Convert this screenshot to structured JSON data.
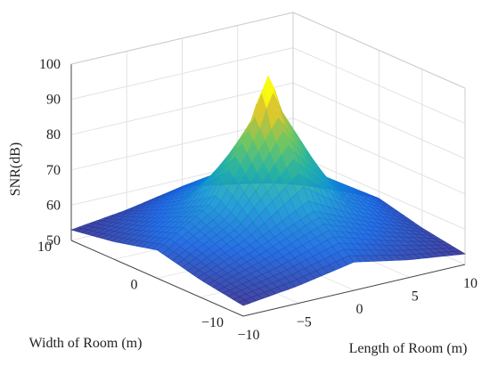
{
  "chart_data": {
    "type": "surface",
    "title": "",
    "xlabel": "Length of Room (m)",
    "ylabel": "Width of Room (m)",
    "zlabel": "SNR(dB)",
    "xlim": [
      -10,
      10
    ],
    "ylim": [
      -10,
      10
    ],
    "zlim": [
      50,
      100
    ],
    "x_ticks": [
      "−10",
      "−5",
      "0",
      "5",
      "10"
    ],
    "y_ticks": [
      "−10",
      "0",
      "10"
    ],
    "z_ticks": [
      "50",
      "60",
      "70",
      "80",
      "90",
      "100"
    ],
    "grid": true,
    "colormap": "parula",
    "peak": {
      "x": 0,
      "y": 0,
      "z": 96
    },
    "corner_values": {
      "x_min_y_min": 53,
      "x_max_y_min": 53,
      "x_min_y_max": 53,
      "x_max_y_max": 53
    },
    "edge_midpoint_values": {
      "x_min": 58,
      "x_max": 58,
      "y_min": 58,
      "y_max": 58
    },
    "surface_z": [
      [
        53,
        55,
        58,
        55,
        53
      ],
      [
        55,
        61,
        68,
        61,
        55
      ],
      [
        58,
        68,
        96,
        68,
        58
      ],
      [
        55,
        61,
        68,
        61,
        55
      ],
      [
        53,
        55,
        58,
        55,
        53
      ]
    ],
    "grid_x": [
      -10,
      -5,
      0,
      5,
      10
    ],
    "grid_y": [
      -10,
      -5,
      0,
      5,
      10
    ]
  }
}
